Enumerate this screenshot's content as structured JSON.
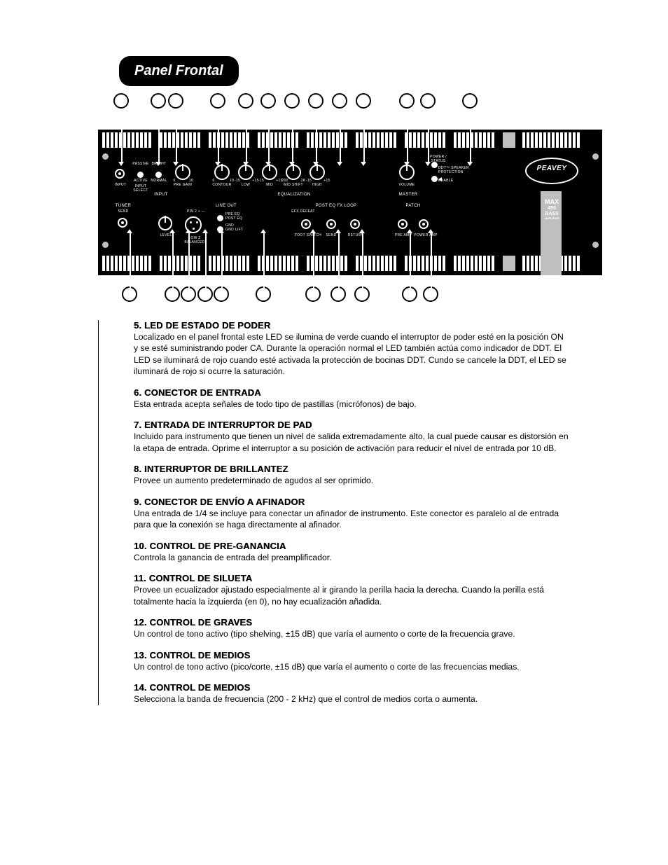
{
  "heading": "Panel Frontal",
  "brand": "PEAVEY",
  "model": {
    "name": "MAX",
    "num": "450",
    "type": "BASS",
    "sub": "AMPLIFIER"
  },
  "panelLabels": {
    "input": "INPUT",
    "inputSel": "INPUT\nSELECT",
    "passive": "PASSIVE",
    "active": "ACTIVE",
    "bright": "BRIGHT",
    "normal": "NORMAL",
    "preGain": "PRE\nGAIN",
    "contour": "CONTOUR",
    "low": "LOW",
    "mid": "MID",
    "midshift": "MID\nSHIFT",
    "high": "HIGH",
    "equalization": "EQUALIZATION",
    "master": "MASTER",
    "volume": "VOLUME",
    "power": "POWER /\nSTATUS",
    "ddt": "DDT™ SPEAKER\nPROTECTION",
    "enable": "ENABLE",
    "tuner": "TUNER",
    "send": "SEND",
    "level": "LEVEL",
    "lowBal": "LOW Z\nBALANCED",
    "pin2": "PIN 2 + —",
    "lineout": "LINE OUT",
    "preeq": "PRE EQ",
    "posteq": "POST EQ",
    "gnd": "GND",
    "gndlift": "GND LIFT",
    "efx": "EFX DEFEAT",
    "postfx": "POST EQ FX LOOP",
    "foot": "FOOT SWITCH",
    "sendl": "SEND",
    "return": "RETURN",
    "patch": "PATCH",
    "preamp": "PRE AMP",
    "poweramp": "POWER AMP",
    "r0": "0",
    "r10": "10",
    "rn15": "-15",
    "rp15": "+15",
    "r200": "200",
    "r2k": "2K"
  },
  "items": [
    {
      "h": "5. LED DE ESTADO DE PODER",
      "p": "Localizado en el panel frontal este LED se ilumina de verde cuando el interruptor de poder esté en la posición ON y se esté suministrando poder CA. Durante la operación normal el LED también actúa como indicador de DDT. El LED se iluminará de rojo cuando esté activada la protección de bocinas DDT. Cundo se cancele la DDT, el LED se iluminará de rojo si ocurre la saturación."
    },
    {
      "h": "6. CONECTOR DE ENTRADA",
      "p": "Esta entrada acepta señales de todo tipo de pastillas (micrófonos) de bajo."
    },
    {
      "h": "7. ENTRADA DE INTERRUPTOR DE PAD",
      "p": "Incluido para instrumento que tienen un nivel de salida extremadamente alto, la cual puede causar es distorsión en la etapa de entrada. Oprime el interruptor a su posición de activación para reducir el nivel de entrada por 10 dB."
    },
    {
      "h": "8. INTERRUPTOR DE BRILLANTEZ",
      "p": "Provee un aumento predeterminado de agudos al ser oprimido."
    },
    {
      "h": "9. CONECTOR DE ENVÍO A AFINADOR",
      "p": "Una entrada de 1/4 se incluye para conectar un afinador de instrumento. Este conector es paralelo al de entrada para que la conexión se haga directamente al afinador."
    },
    {
      "h": "10. CONTROL DE PRE-GANANCIA",
      "p": "Controla la ganancia de entrada del preamplificador."
    },
    {
      "h": "11. CONTROL DE SILUETA",
      "p": "Provee un ecualizador ajustado especialmente al ir girando la perilla hacia la derecha. Cuando la perilla está totalmente hacia la izquierda (en 0), no hay ecualización añadida."
    },
    {
      "h": "12. CONTROL DE GRAVES",
      "p": "Un control de tono activo (tipo shelving, ±15 dB) que varía el aumento o corte de la frecuencia grave."
    },
    {
      "h": "13. CONTROL DE MEDIOS",
      "p": "Un control de tono activo (pico/corte, ±15 dB) que varía el aumento o corte de las frecuencias medias."
    },
    {
      "h": "14. CONTROL DE MEDIOS",
      "p": "Selecciona la banda de frecuencia (200 - 2 kHz) que el control de medios corta o aumenta."
    }
  ],
  "topCallouts_x": [
    22,
    75,
    100,
    160,
    200,
    232,
    266,
    300,
    334,
    368,
    430,
    460,
    520
  ],
  "botCallouts_x": [
    34,
    95,
    118,
    142,
    165,
    225,
    296,
    332,
    366,
    434,
    464
  ]
}
